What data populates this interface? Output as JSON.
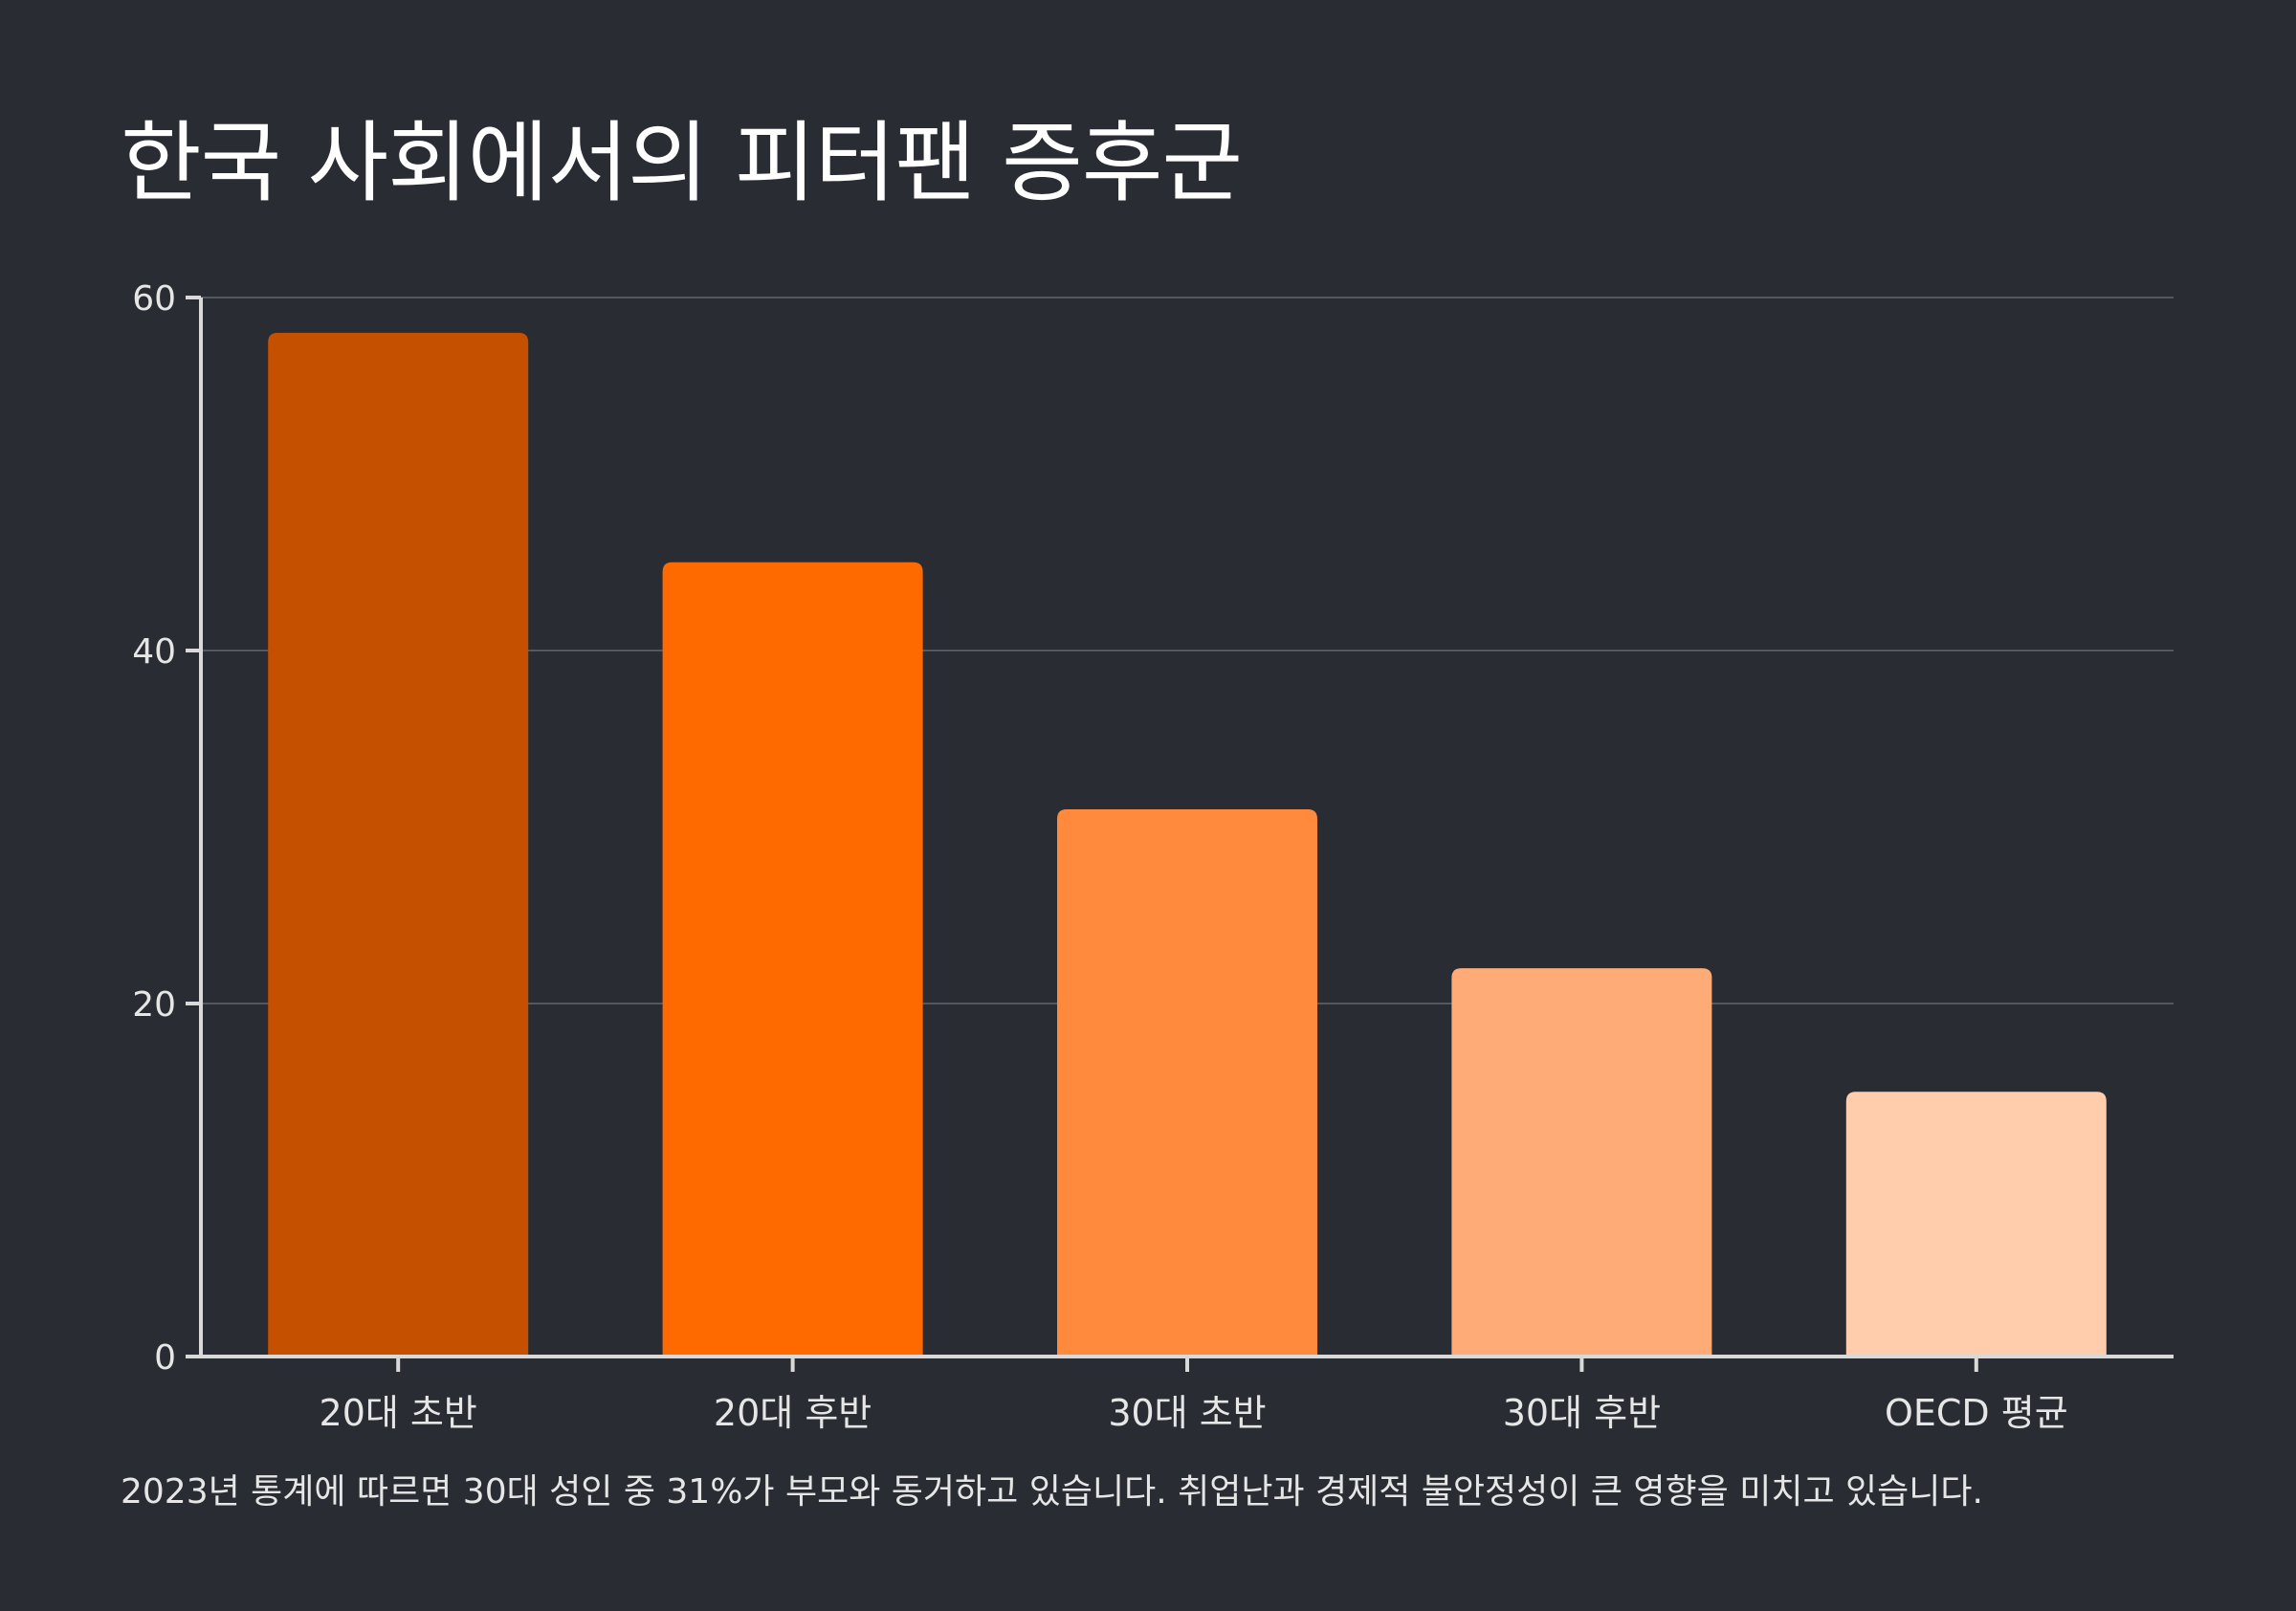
{
  "chart_data": {
    "type": "bar",
    "title": "한국 사회에서의 피터팬 증후군",
    "categories": [
      "20대 초반",
      "20대 후반",
      "30대 초반",
      "30대 후반",
      "OECD 평균"
    ],
    "values": [
      58,
      45,
      31,
      22,
      15
    ],
    "colors": [
      "#c55000",
      "#ff6a00",
      "#ff8a3d",
      "#ffab77",
      "#ffcdac"
    ],
    "ylim": [
      0,
      60
    ],
    "yticks": [
      0,
      20,
      40,
      60
    ],
    "xlabel": "",
    "ylabel": "",
    "grid": true,
    "note": "2023년 통계에 따르면 30대 성인 중 31%가 부모와 동거하고 있습니다. 취업난과 경제적 불안정성이 큰 영향을 미치고 있습니다."
  },
  "theme": {
    "background": "#292c33",
    "axis": "#d9d9d9",
    "grid": "#55585e",
    "text": "#e6e6e6"
  }
}
